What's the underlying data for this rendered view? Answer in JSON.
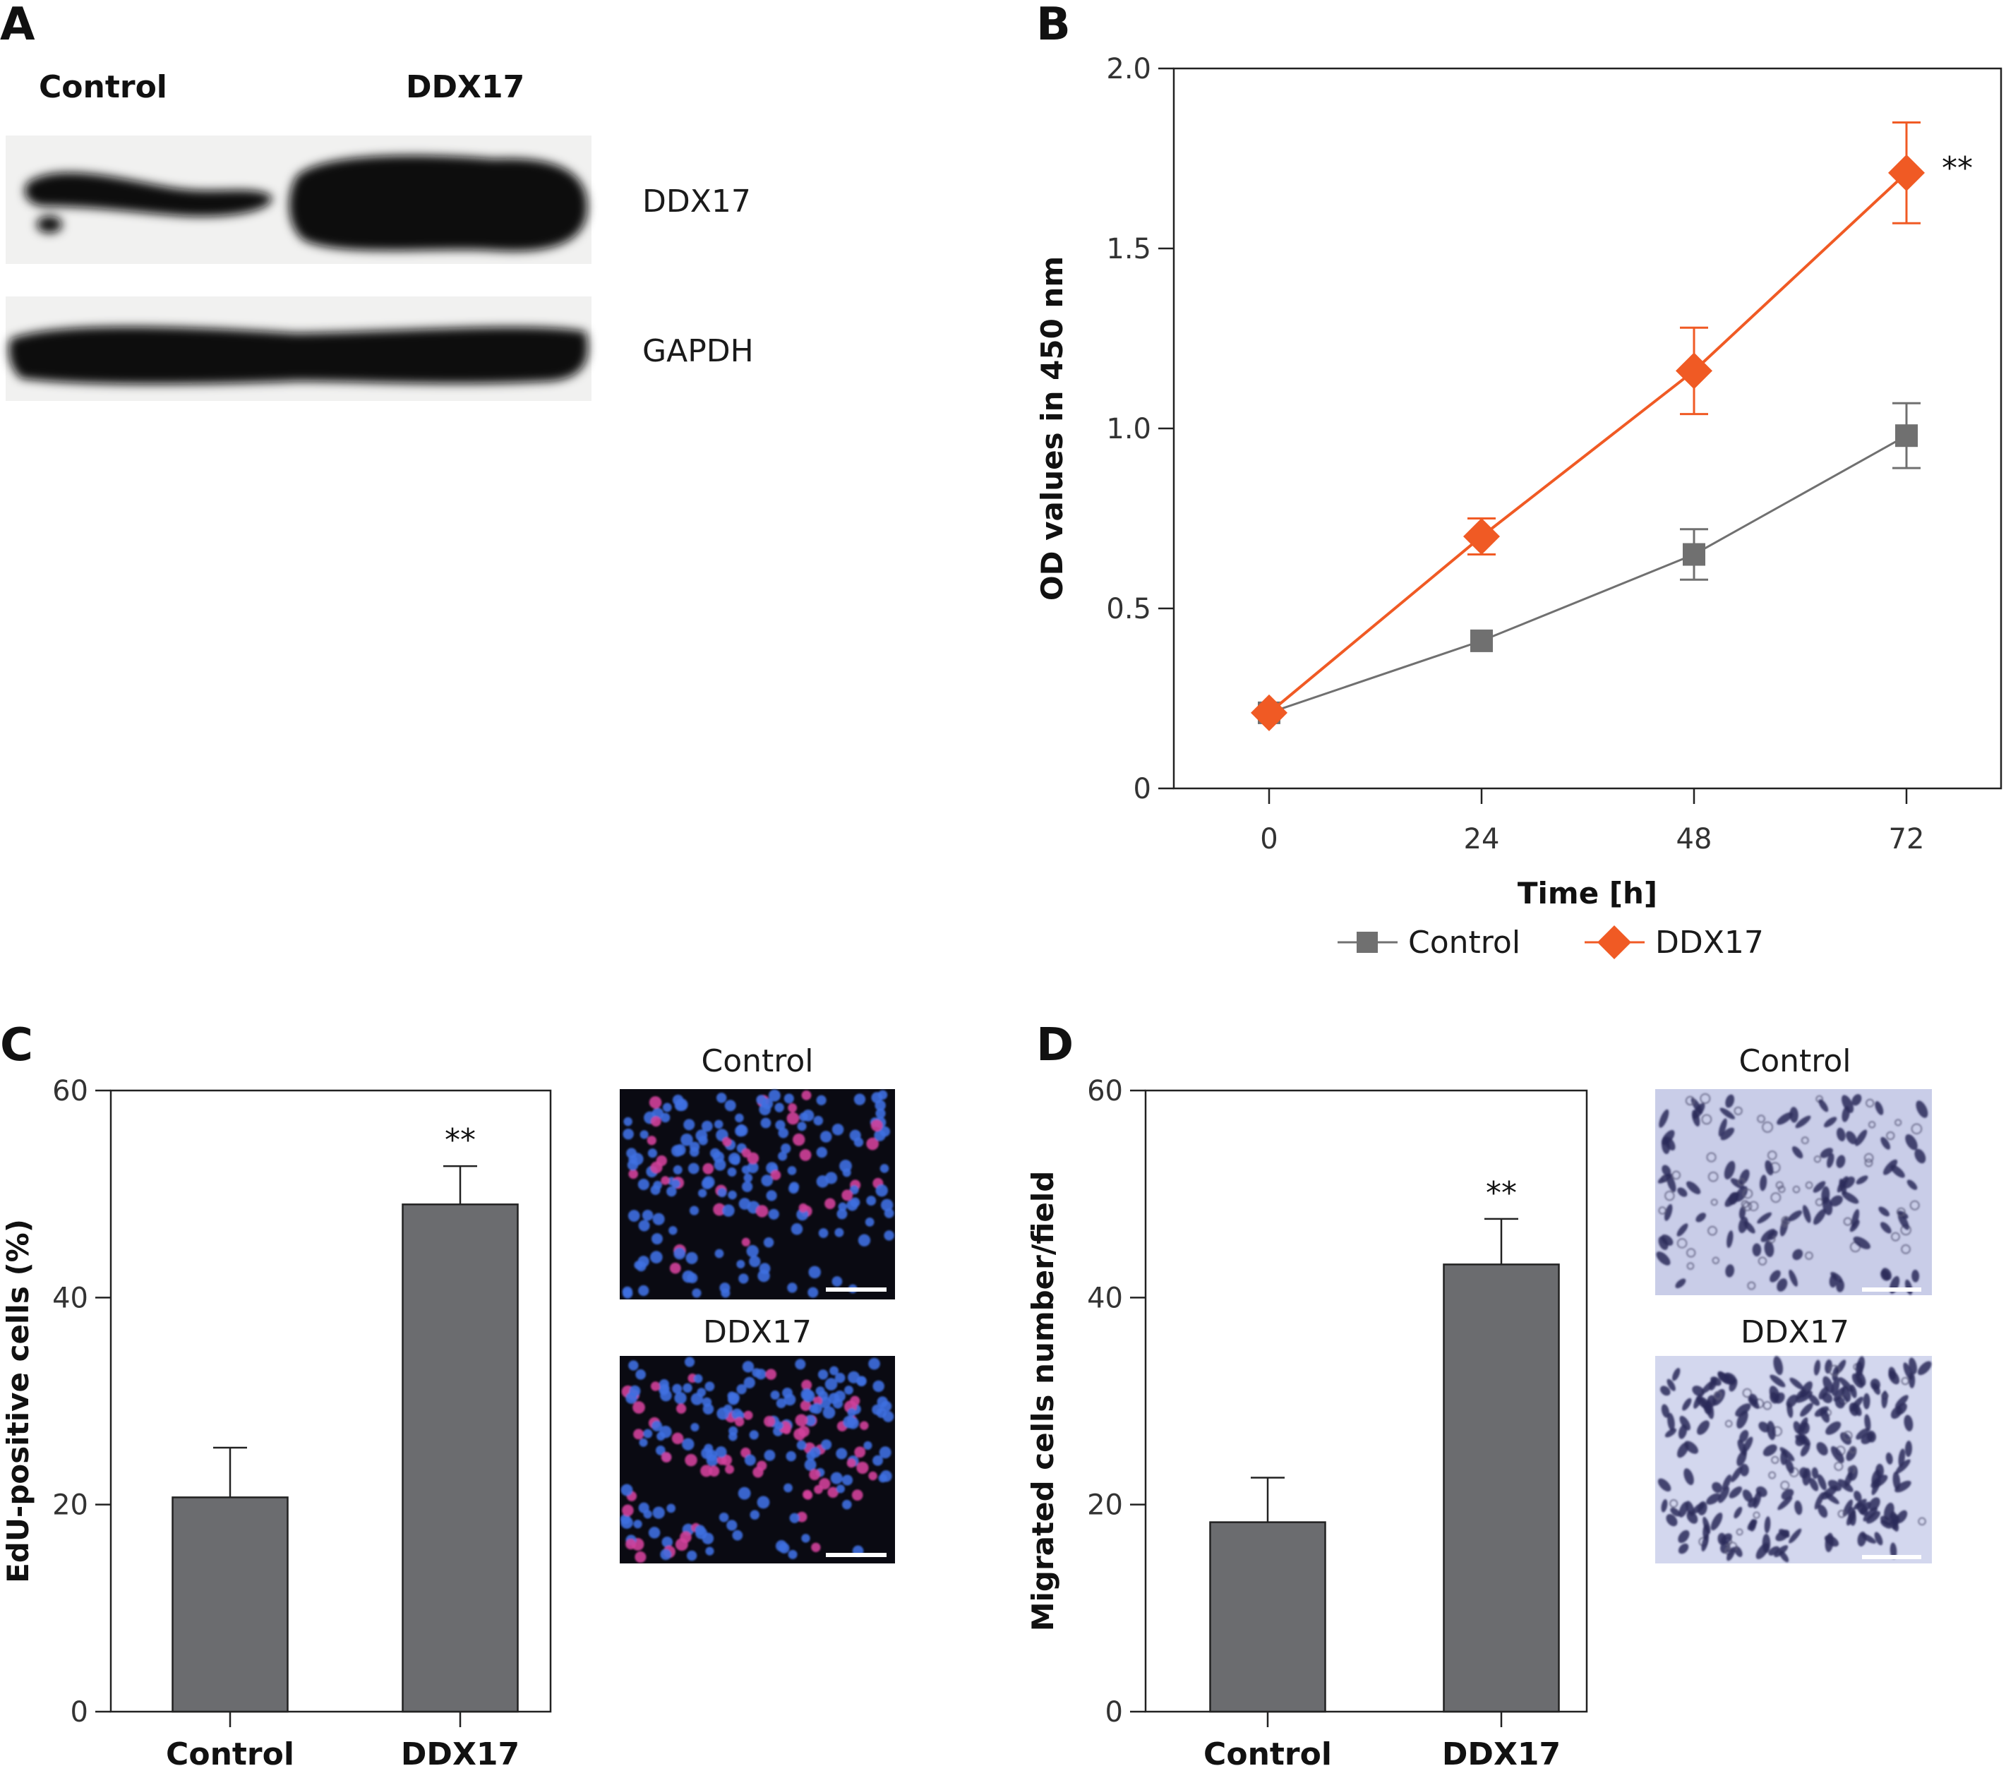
{
  "panels": {
    "A": {
      "letter": "A",
      "lane_labels": [
        "Control",
        "DDX17"
      ],
      "band_labels": [
        "DDX17",
        "GAPDH"
      ]
    },
    "B": {
      "letter": "B"
    },
    "C": {
      "letter": "C",
      "image_labels": [
        "Control",
        "DDX17"
      ]
    },
    "D": {
      "letter": "D",
      "image_labels": [
        "Control",
        "DDX17"
      ]
    }
  },
  "colors": {
    "control": "#707070",
    "ddx17": "#f05a24",
    "bar": "#6b6c6f",
    "edu_background": "#0a0a12",
    "edu_nuclei": "#3f6fe0",
    "edu_positive": "#d0409a",
    "migration_background": "#c9cde8",
    "migration_cells": "#2c2c5a"
  },
  "chart_data": [
    {
      "panel": "B",
      "type": "line",
      "xlabel": "Time [h]",
      "ylabel": "OD values in 450 nm",
      "x": [
        0,
        24,
        48,
        72
      ],
      "xticks": [
        "0",
        "24",
        "48",
        "72"
      ],
      "ylim": [
        0,
        2.0
      ],
      "yticks": [
        "0",
        "0.5",
        "1.0",
        "1.5",
        "2.0"
      ],
      "series": [
        {
          "name": "Control",
          "marker": "square",
          "values": [
            0.21,
            0.41,
            0.65,
            0.98
          ],
          "errors": [
            0.02,
            0.02,
            0.07,
            0.09
          ]
        },
        {
          "name": "DDX17",
          "marker": "diamond",
          "values": [
            0.21,
            0.7,
            1.16,
            1.71
          ],
          "errors": [
            0.02,
            0.05,
            0.12,
            0.14
          ]
        }
      ],
      "annotations": [
        {
          "series": "DDX17",
          "x": 72,
          "text": "**"
        }
      ],
      "legend_position": "bottom"
    },
    {
      "panel": "C",
      "type": "bar",
      "ylabel": "EdU-positive cells (%)",
      "categories": [
        "Control",
        "DDX17"
      ],
      "values": [
        20.7,
        49.0
      ],
      "errors": [
        4.8,
        3.7
      ],
      "ylim": [
        0,
        60
      ],
      "yticks": [
        "0",
        "20",
        "40",
        "60"
      ],
      "annotations": [
        {
          "category": "DDX17",
          "text": "**"
        }
      ]
    },
    {
      "panel": "D",
      "type": "bar",
      "ylabel": "Migrated cells number/field",
      "categories": [
        "Control",
        "DDX17"
      ],
      "values": [
        18.3,
        43.2
      ],
      "errors": [
        4.3,
        4.4
      ],
      "ylim": [
        0,
        60
      ],
      "yticks": [
        "0",
        "20",
        "40",
        "60"
      ],
      "annotations": [
        {
          "category": "DDX17",
          "text": "**"
        }
      ]
    }
  ]
}
